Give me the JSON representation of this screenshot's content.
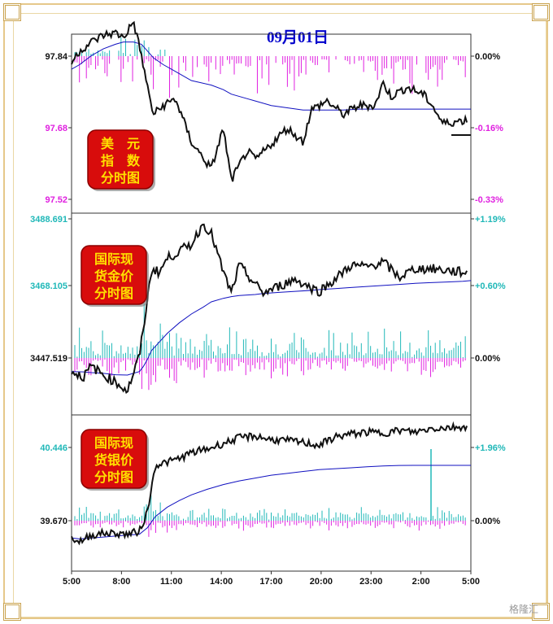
{
  "title": "09月01日",
  "watermark": "格隆汇",
  "x_ticks": [
    "5:00",
    "8:00",
    "11:00",
    "14:00",
    "17:00",
    "20:00",
    "23:00",
    "2:00",
    "5:00"
  ],
  "colors": {
    "title": "#0000cc",
    "magenta": "#e020e0",
    "teal": "#20b8b8",
    "avg": "#1010c0",
    "price": "#111111"
  },
  "panels": [
    {
      "badge_lines": [
        "美　元",
        "指　数",
        "分时图"
      ],
      "left_ticks": [
        "97.84",
        "97.68",
        "97.52"
      ],
      "right_ticks": [
        "0.00%",
        "-0.16%",
        "-0.33%"
      ]
    },
    {
      "badge_lines": [
        "国际现",
        "货金价",
        "分时图"
      ],
      "left_ticks": [
        "3488.691",
        "3468.105",
        "3447.519"
      ],
      "right_ticks": [
        "+1.19%",
        "+0.60%",
        "0.00%"
      ]
    },
    {
      "badge_lines": [
        "国际现",
        "货银价",
        "分时图"
      ],
      "left_ticks": [
        "40.446",
        "39.670"
      ],
      "right_ticks": [
        "+1.96%",
        "0.00%"
      ]
    }
  ],
  "chart_data": [
    {
      "type": "line",
      "name": "美元指数",
      "x": [
        0,
        0.02,
        0.05,
        0.08,
        0.11,
        0.13,
        0.155,
        0.175,
        0.19,
        0.205,
        0.23,
        0.26,
        0.3,
        0.35,
        0.38,
        0.4,
        0.44,
        0.46,
        0.5,
        0.54,
        0.58,
        0.6,
        0.64,
        0.68,
        0.72,
        0.76,
        0.78,
        0.8,
        0.84,
        0.88,
        0.9,
        0.93,
        1
      ],
      "price": [
        97.815,
        97.84,
        97.86,
        97.875,
        97.88,
        97.87,
        97.905,
        97.83,
        97.76,
        97.7,
        97.72,
        97.735,
        97.64,
        97.58,
        97.67,
        97.555,
        97.62,
        97.6,
        97.635,
        97.67,
        97.64,
        97.71,
        97.73,
        97.7,
        97.72,
        97.72,
        97.77,
        97.74,
        97.76,
        97.745,
        97.725,
        97.68,
        97.69
      ],
      "avg": [
        97.8,
        97.81,
        97.83,
        97.845,
        97.855,
        97.86,
        97.86,
        97.855,
        97.84,
        97.825,
        97.81,
        97.795,
        97.775,
        97.765,
        97.755,
        97.745,
        97.735,
        97.73,
        97.72,
        97.715,
        97.71,
        97.71,
        97.71,
        97.71,
        97.712,
        97.712,
        97.712,
        97.712,
        97.712,
        97.712,
        97.712,
        97.712,
        97.712
      ],
      "ylim": [
        97.49,
        97.87
      ]
    },
    {
      "type": "line",
      "name": "国际现货金价",
      "x": [
        0,
        0.03,
        0.05,
        0.08,
        0.11,
        0.14,
        0.17,
        0.18,
        0.19,
        0.2,
        0.22,
        0.24,
        0.27,
        0.3,
        0.33,
        0.35,
        0.38,
        0.4,
        0.42,
        0.46,
        0.48,
        0.52,
        0.56,
        0.6,
        0.62,
        0.66,
        0.7,
        0.74,
        0.78,
        0.82,
        0.86,
        0.9,
        0.94,
        0.98,
        1
      ],
      "price": [
        3447.5,
        3446.0,
        3449.0,
        3446.5,
        3444.5,
        3442.0,
        3452.0,
        3460.0,
        3468.0,
        3477.0,
        3476.0,
        3480.0,
        3482.0,
        3484.0,
        3490.0,
        3487.0,
        3476.0,
        3470.0,
        3478.0,
        3472.5,
        3470.0,
        3472.0,
        3474.0,
        3471.5,
        3470.5,
        3474.0,
        3478.0,
        3477.5,
        3479.0,
        3474.5,
        3477.0,
        3477.0,
        3476.5,
        3476.0,
        3476.0
      ],
      "avg": [
        3447.5,
        3447.4,
        3447.2,
        3447.0,
        3446.6,
        3446.5,
        3447.5,
        3449.0,
        3451.0,
        3453.5,
        3456.0,
        3458.5,
        3461.5,
        3464.0,
        3466.0,
        3467.5,
        3468.5,
        3469.0,
        3469.3,
        3469.6,
        3469.9,
        3470.2,
        3470.5,
        3470.8,
        3471.0,
        3471.3,
        3471.6,
        3471.9,
        3472.2,
        3472.5,
        3472.8,
        3473.0,
        3473.2,
        3473.4,
        3473.6
      ],
      "ylim": [
        3436,
        3492
      ]
    },
    {
      "type": "line",
      "name": "国际现货银价",
      "x": [
        0,
        0.02,
        0.05,
        0.08,
        0.11,
        0.14,
        0.17,
        0.19,
        0.21,
        0.24,
        0.27,
        0.3,
        0.34,
        0.38,
        0.42,
        0.46,
        0.5,
        0.54,
        0.58,
        0.62,
        0.66,
        0.7,
        0.74,
        0.78,
        0.82,
        0.86,
        0.9,
        0.94,
        0.98,
        1
      ],
      "price": [
        39.67,
        39.63,
        39.7,
        39.72,
        39.72,
        39.71,
        39.74,
        39.95,
        40.45,
        40.48,
        40.52,
        40.58,
        40.62,
        40.68,
        40.74,
        40.76,
        40.72,
        40.71,
        40.69,
        40.66,
        40.75,
        40.78,
        40.8,
        40.79,
        40.82,
        40.8,
        40.84,
        40.85,
        40.86,
        40.86
      ],
      "avg": [
        39.67,
        39.66,
        39.67,
        39.68,
        39.69,
        39.7,
        39.71,
        39.78,
        39.9,
        40.0,
        40.07,
        40.13,
        40.19,
        40.24,
        40.28,
        40.31,
        40.34,
        40.36,
        40.38,
        40.4,
        40.41,
        40.42,
        40.43,
        40.44,
        40.445,
        40.446,
        40.446,
        40.446,
        40.446,
        40.446
      ],
      "ylim": [
        39.35,
        40.95
      ]
    }
  ]
}
